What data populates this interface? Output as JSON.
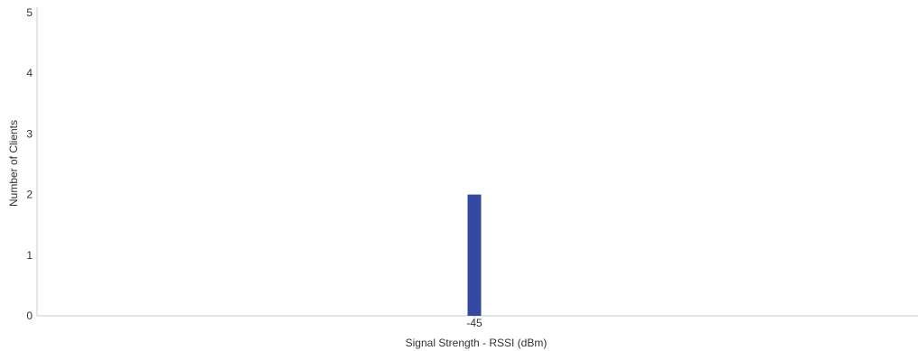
{
  "chart_data": {
    "type": "bar",
    "title": "",
    "xlabel": "Signal Strength - RSSI (dBm)",
    "ylabel": "Number of Clients",
    "categories": [
      "-45"
    ],
    "values": [
      2
    ],
    "ylim": [
      0,
      5
    ],
    "yticks": [
      0,
      1,
      2,
      3,
      4,
      5
    ],
    "grid": false,
    "legend": "none",
    "bar_color": "#3448a0",
    "axis_color": "#cccccc",
    "text_color": "#333333"
  }
}
